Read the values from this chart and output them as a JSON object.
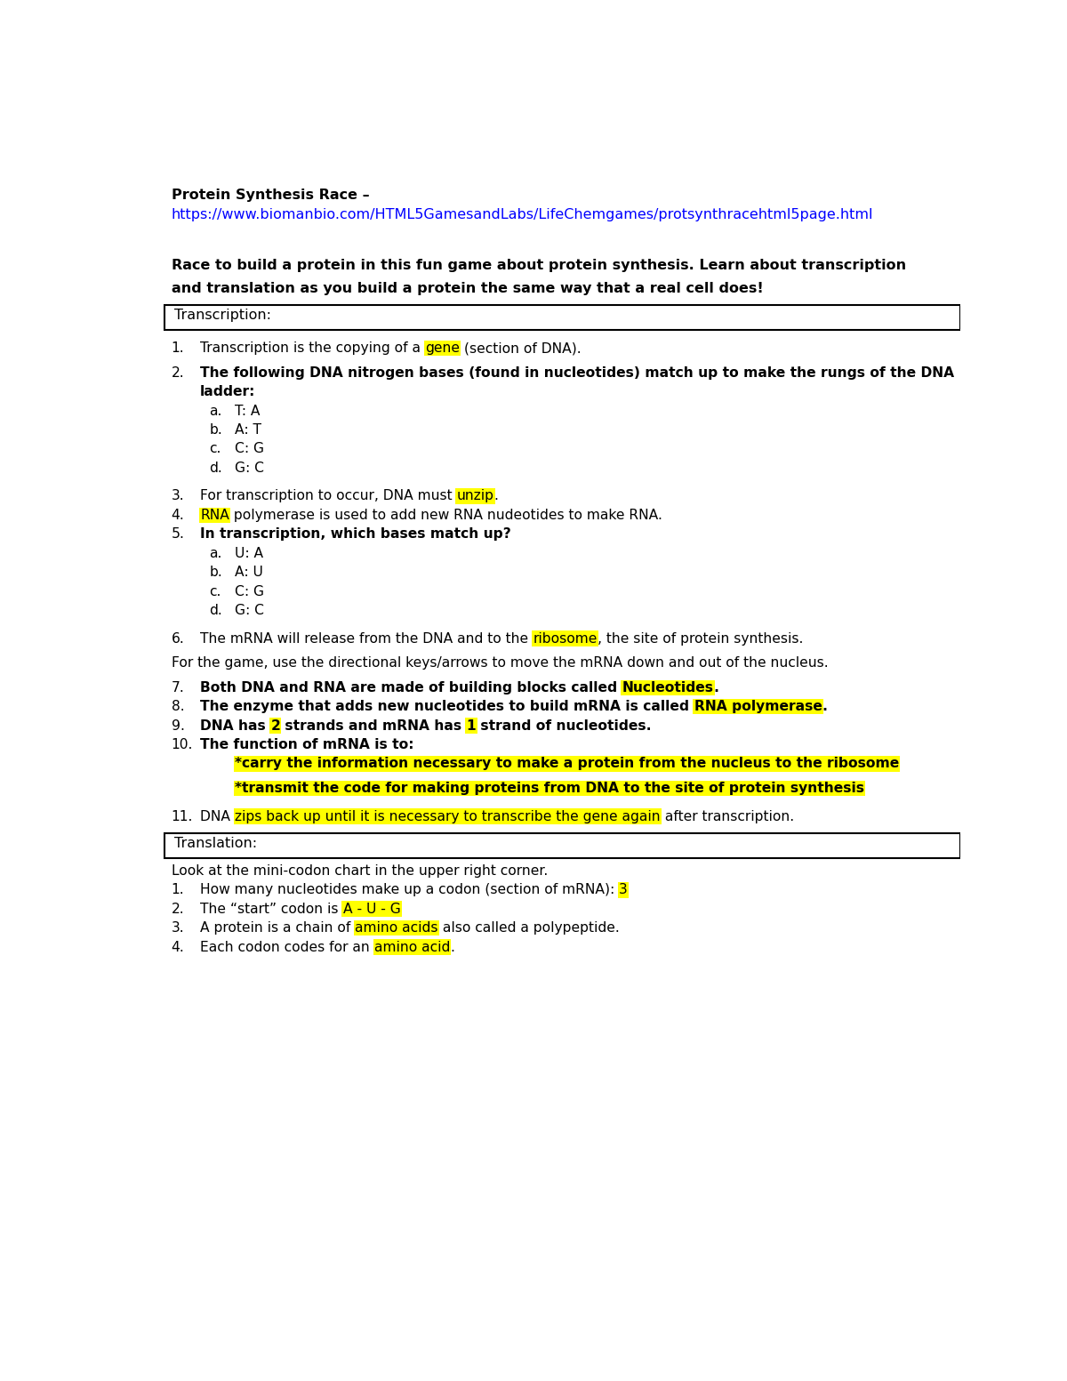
{
  "bg_color": "#ffffff",
  "title_line1": "Protein Synthesis Race –",
  "url": "https://www.biomanbio.com/HTML5GamesandLabs/LifeChemgames/protsynthracehtml5page.html",
  "intro_bold": "Race to build a protein in this fun game about protein synthesis. Learn about transcription\nand translation as you build a protein the same way that a real cell does!",
  "section1_header": "Transcription:",
  "section2_header": "Translation:",
  "items": [
    {
      "num": "1.",
      "text_parts": [
        {
          "text": "Transcription is the copying of a ",
          "bold": false,
          "highlight": false
        },
        {
          "text": "gene",
          "bold": false,
          "highlight": true
        },
        {
          "text": " (section of DNA).",
          "bold": false,
          "highlight": false
        }
      ],
      "indent": 1,
      "extra_before": 0.3
    },
    {
      "num": "2.",
      "text_parts": [
        {
          "text": "The following DNA nitrogen bases (found in nucleotides) match up to make the rungs of the DNA",
          "bold": true,
          "highlight": false
        }
      ],
      "indent": 1,
      "extra_before": 0.3
    },
    {
      "num": "",
      "text_parts": [
        {
          "text": "ladder:",
          "bold": true,
          "highlight": false
        }
      ],
      "indent": 1,
      "extra_before": 0.0,
      "continuation": true
    },
    {
      "num": "a.",
      "text_parts": [
        {
          "text": "T: A",
          "bold": false,
          "highlight": false
        }
      ],
      "indent": 2,
      "extra_before": 0.0
    },
    {
      "num": "b.",
      "text_parts": [
        {
          "text": "A: T",
          "bold": false,
          "highlight": false
        }
      ],
      "indent": 2,
      "extra_before": 0.0
    },
    {
      "num": "c.",
      "text_parts": [
        {
          "text": "C: G",
          "bold": false,
          "highlight": false
        }
      ],
      "indent": 2,
      "extra_before": 0.0
    },
    {
      "num": "d.",
      "text_parts": [
        {
          "text": "G: C",
          "bold": false,
          "highlight": false
        }
      ],
      "indent": 2,
      "extra_before": 0.0
    },
    {
      "num": "3.",
      "text_parts": [
        {
          "text": "For transcription to occur, DNA must ",
          "bold": false,
          "highlight": false
        },
        {
          "text": "unzip",
          "bold": false,
          "highlight": true
        },
        {
          "text": ".",
          "bold": false,
          "highlight": false
        }
      ],
      "indent": 1,
      "extra_before": 0.5
    },
    {
      "num": "4.",
      "text_parts": [
        {
          "text": "RNA",
          "bold": false,
          "highlight": true
        },
        {
          "text": " polymerase is used to add new RNA nudeotides to make RNA.",
          "bold": false,
          "highlight": false
        }
      ],
      "indent": 1,
      "extra_before": 0.0
    },
    {
      "num": "5.",
      "text_parts": [
        {
          "text": "In transcription, which bases match up?",
          "bold": true,
          "highlight": false
        }
      ],
      "indent": 1,
      "extra_before": 0.0
    },
    {
      "num": "a.",
      "text_parts": [
        {
          "text": "U: A",
          "bold": false,
          "highlight": false
        }
      ],
      "indent": 2,
      "extra_before": 0.0
    },
    {
      "num": "b.",
      "text_parts": [
        {
          "text": "A: U",
          "bold": false,
          "highlight": false
        }
      ],
      "indent": 2,
      "extra_before": 0.0
    },
    {
      "num": "c.",
      "text_parts": [
        {
          "text": "C: G",
          "bold": false,
          "highlight": false
        }
      ],
      "indent": 2,
      "extra_before": 0.0
    },
    {
      "num": "d.",
      "text_parts": [
        {
          "text": "G: C",
          "bold": false,
          "highlight": false
        }
      ],
      "indent": 2,
      "extra_before": 0.0
    },
    {
      "num": "6.",
      "text_parts": [
        {
          "text": "The mRNA will release from the DNA and to the ",
          "bold": false,
          "highlight": false
        },
        {
          "text": "ribosome",
          "bold": false,
          "highlight": true
        },
        {
          "text": ", the site of protein synthesis.",
          "bold": false,
          "highlight": false
        }
      ],
      "indent": 1,
      "extra_before": 0.5
    },
    {
      "num": "",
      "text_parts": [
        {
          "text": "For the game, use the directional keys/arrows to move the mRNA down and out of the nucleus.",
          "bold": false,
          "highlight": false
        }
      ],
      "indent": 0,
      "extra_before": 0.3
    },
    {
      "num": "7.",
      "text_parts": [
        {
          "text": "Both DNA and RNA are made of building blocks called ",
          "bold": true,
          "highlight": false
        },
        {
          "text": "Nucleotides",
          "bold": true,
          "highlight": true
        },
        {
          "text": ".",
          "bold": true,
          "highlight": false
        }
      ],
      "indent": 1,
      "extra_before": 0.3
    },
    {
      "num": "8.",
      "text_parts": [
        {
          "text": "The enzyme that adds new nucleotides to build mRNA is called ",
          "bold": true,
          "highlight": false
        },
        {
          "text": "RNA polymerase",
          "bold": true,
          "highlight": true
        },
        {
          "text": ".",
          "bold": true,
          "highlight": false
        }
      ],
      "indent": 1,
      "extra_before": 0.0
    },
    {
      "num": "9.",
      "text_parts": [
        {
          "text": "DNA has ",
          "bold": true,
          "highlight": false
        },
        {
          "text": "2",
          "bold": true,
          "highlight": true
        },
        {
          "text": " strands and mRNA has ",
          "bold": true,
          "highlight": false
        },
        {
          "text": "1",
          "bold": true,
          "highlight": true
        },
        {
          "text": " strand of nucleotides.",
          "bold": true,
          "highlight": false
        }
      ],
      "indent": 1,
      "extra_before": 0.0
    },
    {
      "num": "10.",
      "text_parts": [
        {
          "text": "The function of mRNA is to:",
          "bold": true,
          "highlight": false
        }
      ],
      "indent": 1,
      "extra_before": 0.0
    },
    {
      "num": "",
      "text_parts": [
        {
          "text": "*carry the information necessary to make a protein from the nucleus to the ribosome",
          "bold": true,
          "highlight": true,
          "block_highlight": true
        }
      ],
      "indent": 2,
      "extra_before": 0.0
    },
    {
      "num": "",
      "text_parts": [
        {
          "text": "*transmit the code for making proteins from DNA to the site of protein synthesis",
          "bold": true,
          "highlight": true,
          "block_highlight": true
        }
      ],
      "indent": 2,
      "extra_before": 0.3
    },
    {
      "num": "11.",
      "text_parts": [
        {
          "text": "DNA ",
          "bold": false,
          "highlight": false
        },
        {
          "text": "zips back up until it is necessary to transcribe the gene again",
          "bold": false,
          "highlight": true
        },
        {
          "text": " after transcription.",
          "bold": false,
          "highlight": false
        }
      ],
      "indent": 1,
      "extra_before": 0.5
    }
  ],
  "translation_items": [
    {
      "num": "",
      "text_parts": [
        {
          "text": "Look at the mini-codon chart in the upper right corner.",
          "bold": false,
          "highlight": false
        }
      ],
      "indent": 0,
      "extra_before": 0.0
    },
    {
      "num": "1.",
      "text_parts": [
        {
          "text": "How many nucleotides make up a codon (section of mRNA): ",
          "bold": false,
          "highlight": false
        },
        {
          "text": "3",
          "bold": false,
          "highlight": true
        }
      ],
      "indent": 1,
      "extra_before": 0.0
    },
    {
      "num": "2.",
      "text_parts": [
        {
          "text": "The “start” codon is ",
          "bold": false,
          "highlight": false
        },
        {
          "text": "A - U - G",
          "bold": false,
          "highlight": true
        }
      ],
      "indent": 1,
      "extra_before": 0.0
    },
    {
      "num": "3.",
      "text_parts": [
        {
          "text": "A protein is a chain of ",
          "bold": false,
          "highlight": false
        },
        {
          "text": "amino acids",
          "bold": false,
          "highlight": true
        },
        {
          "text": " also called a polypeptide.",
          "bold": false,
          "highlight": false
        }
      ],
      "indent": 1,
      "extra_before": 0.0
    },
    {
      "num": "4.",
      "text_parts": [
        {
          "text": "Each codon codes for an ",
          "bold": false,
          "highlight": false
        },
        {
          "text": "amino acid",
          "bold": false,
          "highlight": true
        },
        {
          "text": ".",
          "bold": false,
          "highlight": false
        }
      ],
      "indent": 1,
      "extra_before": 0.0
    }
  ]
}
